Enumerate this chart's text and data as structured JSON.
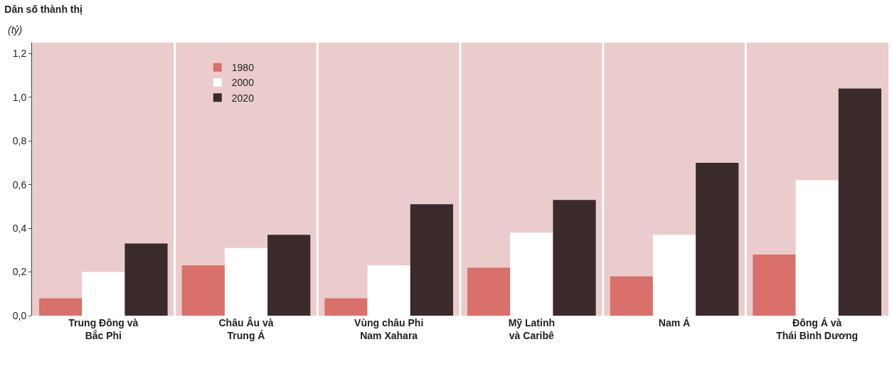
{
  "chart_data": {
    "type": "bar",
    "title": "Dân số thành thị",
    "ylabel": "(tỷ)",
    "categories": [
      "Trung Đông và\nBắc Phi",
      "Châu Âu và\nTrung Á",
      "Vùng châu Phi\nNam Xahara",
      "Mỹ Latinh\nvà Caribê",
      "Nam Á",
      "Đông Á và\nThái Bình Dương"
    ],
    "series": [
      {
        "name": "1980",
        "color": "#d9706a",
        "values": [
          0.08,
          0.23,
          0.08,
          0.22,
          0.18,
          0.28
        ]
      },
      {
        "name": "2000",
        "color": "#ffffff",
        "values": [
          0.2,
          0.31,
          0.23,
          0.38,
          0.37,
          0.62
        ]
      },
      {
        "name": "2020",
        "color": "#3a2a2c",
        "values": [
          0.33,
          0.37,
          0.51,
          0.53,
          0.7,
          1.04
        ]
      }
    ],
    "ylim": [
      0,
      1.25
    ],
    "yticks": [
      {
        "value": 0,
        "label": "0,0"
      },
      {
        "value": 0.2,
        "label": "0,2"
      },
      {
        "value": 0.4,
        "label": "0,4"
      },
      {
        "value": 0.6,
        "label": "0,6"
      },
      {
        "value": 0.8,
        "label": "0,8"
      },
      {
        "value": 1.0,
        "label": "1,0"
      },
      {
        "value": 1.2,
        "label": "1,2"
      }
    ],
    "grid": false,
    "legend": "top left"
  }
}
